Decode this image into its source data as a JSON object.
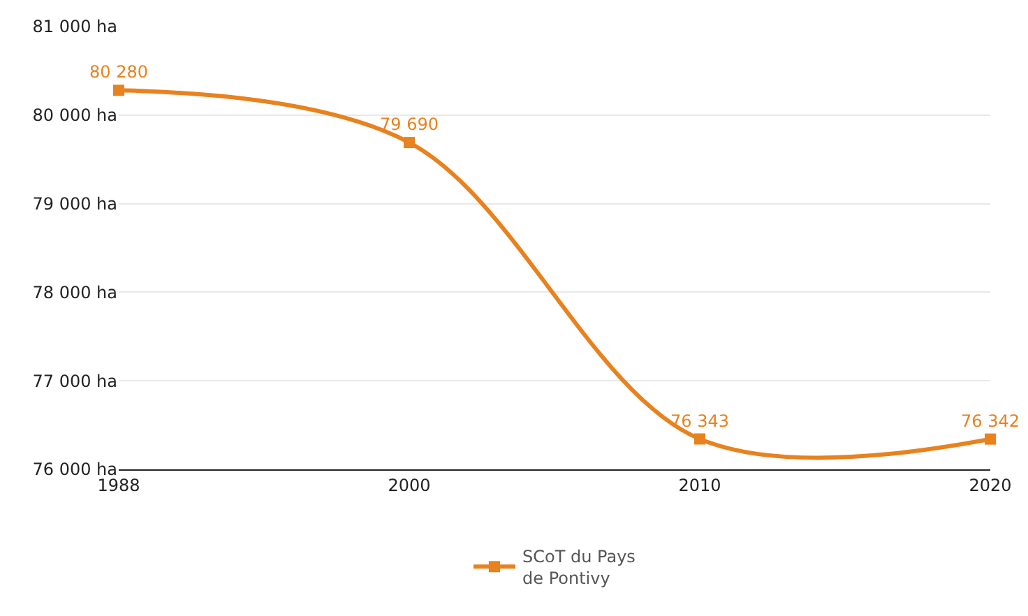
{
  "chart_data": {
    "type": "line",
    "categories": [
      "1988",
      "2000",
      "2010",
      "2020"
    ],
    "series": [
      {
        "name": "SCoT du Pays de Pontivy",
        "color": "#e8821e",
        "values": [
          80280,
          79690,
          76343,
          76342
        ],
        "value_labels": [
          "80 280",
          "79 690",
          "76 343",
          "76 342"
        ]
      }
    ],
    "ylim": [
      76000,
      81000
    ],
    "yticks": [
      {
        "value": 76000,
        "label": "76 000 ha"
      },
      {
        "value": 77000,
        "label": "77 000 ha"
      },
      {
        "value": 78000,
        "label": "78 000 ha"
      },
      {
        "value": 79000,
        "label": "79 000 ha"
      },
      {
        "value": 80000,
        "label": "80 000 ha"
      },
      {
        "value": 81000,
        "label": "81 000 ha"
      }
    ],
    "grid": "y",
    "legend": "bottom",
    "marker": "square",
    "line_style": "solid"
  }
}
